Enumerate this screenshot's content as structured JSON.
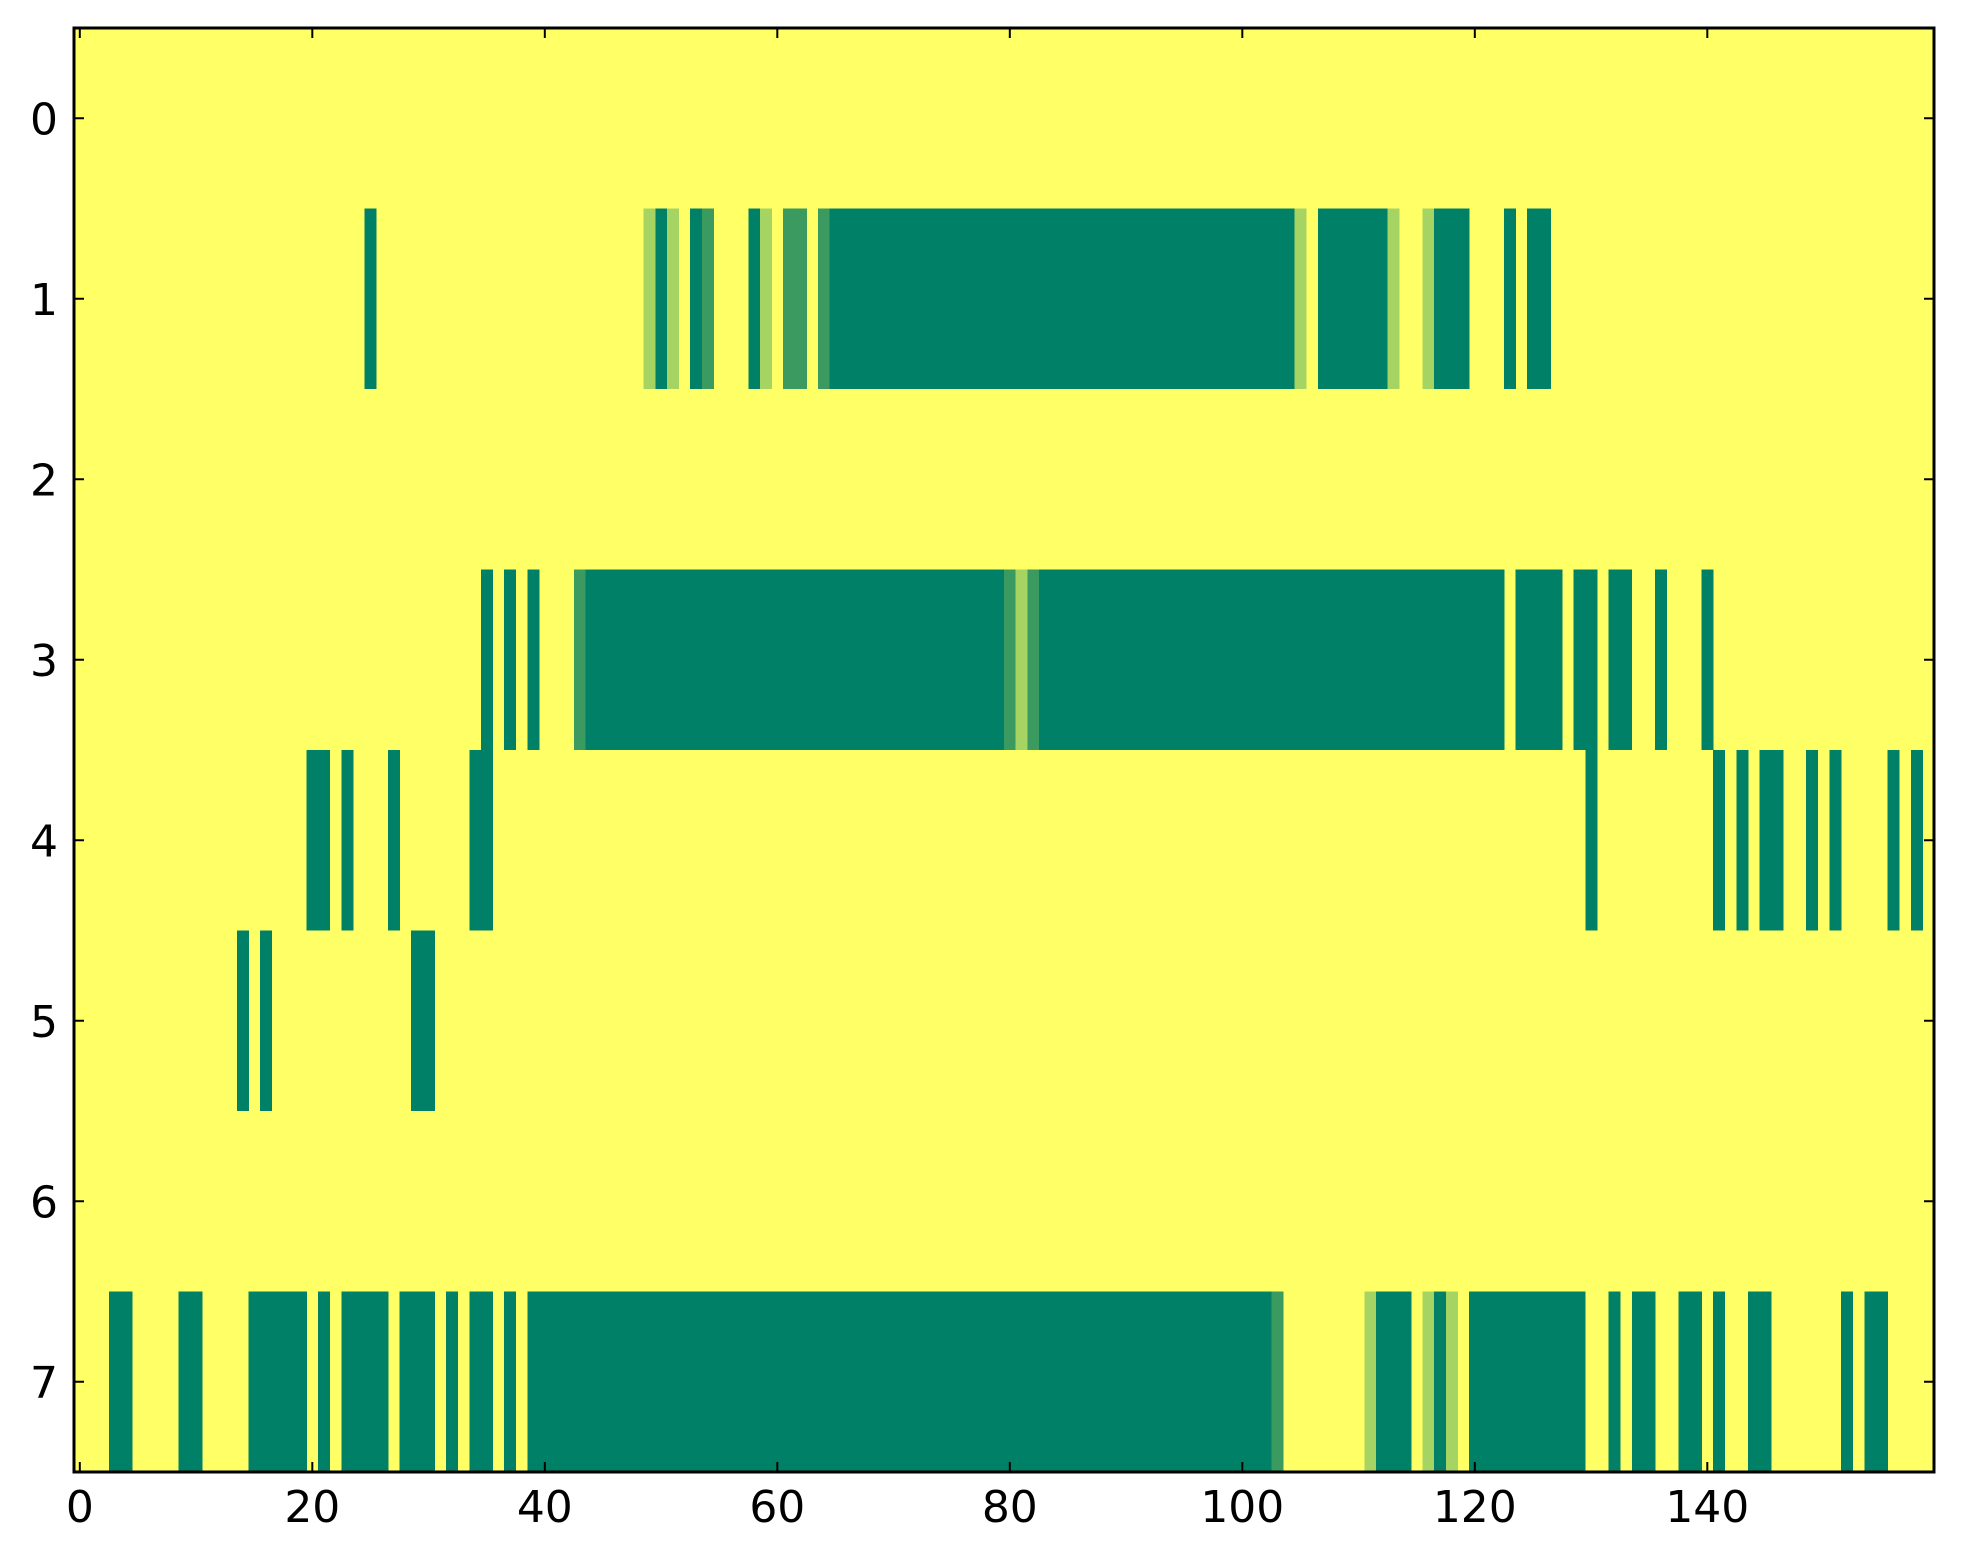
{
  "chart_data": {
    "type": "heatmap",
    "title": "",
    "xlabel": "",
    "ylabel": "",
    "x_ticks": [
      "0",
      "20",
      "40",
      "60",
      "80",
      "100",
      "120",
      "140"
    ],
    "y_ticks": [
      "0",
      "1",
      "2",
      "3",
      "4",
      "5",
      "6",
      "7"
    ],
    "xlim": [
      -0.5,
      159.5
    ],
    "ylim": [
      7.5,
      -0.5
    ],
    "columns": 160,
    "rows": 8,
    "grid": false,
    "legend": "none",
    "colormap": "summer",
    "colors": {
      "background": "#ffff66",
      "dark": "#008066",
      "mid_dark": "#3a9a5f",
      "mid_light": "#a6d462",
      "axis": "#000000"
    },
    "levels": {
      "background": 0.0,
      "mid_light": 0.35,
      "mid_dark": 0.8,
      "dark": 1.0
    },
    "default_value": 0.0,
    "cells": [
      {
        "row": 1,
        "start": 25,
        "end": 26,
        "level": "dark"
      },
      {
        "row": 1,
        "start": 49,
        "end": 50,
        "level": "mid_light"
      },
      {
        "row": 1,
        "start": 50,
        "end": 51,
        "level": "dark"
      },
      {
        "row": 1,
        "start": 51,
        "end": 52,
        "level": "mid_light"
      },
      {
        "row": 1,
        "start": 53,
        "end": 54,
        "level": "dark"
      },
      {
        "row": 1,
        "start": 54,
        "end": 55,
        "level": "mid_dark"
      },
      {
        "row": 1,
        "start": 58,
        "end": 59,
        "level": "dark"
      },
      {
        "row": 1,
        "start": 59,
        "end": 60,
        "level": "mid_light"
      },
      {
        "row": 1,
        "start": 61,
        "end": 63,
        "level": "mid_dark"
      },
      {
        "row": 1,
        "start": 64,
        "end": 65,
        "level": "mid_dark"
      },
      {
        "row": 1,
        "start": 65,
        "end": 105,
        "level": "dark"
      },
      {
        "row": 1,
        "start": 105,
        "end": 106,
        "level": "mid_light"
      },
      {
        "row": 1,
        "start": 107,
        "end": 113,
        "level": "dark"
      },
      {
        "row": 1,
        "start": 113,
        "end": 114,
        "level": "mid_light"
      },
      {
        "row": 1,
        "start": 116,
        "end": 117,
        "level": "mid_light"
      },
      {
        "row": 1,
        "start": 117,
        "end": 120,
        "level": "dark"
      },
      {
        "row": 1,
        "start": 123,
        "end": 124,
        "level": "dark"
      },
      {
        "row": 1,
        "start": 125,
        "end": 127,
        "level": "dark"
      },
      {
        "row": 3,
        "start": 35,
        "end": 36,
        "level": "dark"
      },
      {
        "row": 3,
        "start": 37,
        "end": 38,
        "level": "dark"
      },
      {
        "row": 3,
        "start": 39,
        "end": 40,
        "level": "dark"
      },
      {
        "row": 3,
        "start": 43,
        "end": 44,
        "level": "mid_dark"
      },
      {
        "row": 3,
        "start": 44,
        "end": 80,
        "level": "dark"
      },
      {
        "row": 3,
        "start": 80,
        "end": 81,
        "level": "mid_dark"
      },
      {
        "row": 3,
        "start": 81,
        "end": 82,
        "level": "mid_light"
      },
      {
        "row": 3,
        "start": 82,
        "end": 83,
        "level": "mid_dark"
      },
      {
        "row": 3,
        "start": 83,
        "end": 123,
        "level": "dark"
      },
      {
        "row": 3,
        "start": 124,
        "end": 128,
        "level": "dark"
      },
      {
        "row": 3,
        "start": 129,
        "end": 131,
        "level": "dark"
      },
      {
        "row": 3,
        "start": 132,
        "end": 134,
        "level": "dark"
      },
      {
        "row": 3,
        "start": 136,
        "end": 137,
        "level": "dark"
      },
      {
        "row": 3,
        "start": 140,
        "end": 141,
        "level": "dark"
      },
      {
        "row": 4,
        "start": 20,
        "end": 22,
        "level": "dark"
      },
      {
        "row": 4,
        "start": 23,
        "end": 24,
        "level": "dark"
      },
      {
        "row": 4,
        "start": 27,
        "end": 28,
        "level": "dark"
      },
      {
        "row": 4,
        "start": 34,
        "end": 36,
        "level": "dark"
      },
      {
        "row": 4,
        "start": 130,
        "end": 131,
        "level": "dark"
      },
      {
        "row": 4,
        "start": 141,
        "end": 142,
        "level": "dark"
      },
      {
        "row": 4,
        "start": 143,
        "end": 144,
        "level": "dark"
      },
      {
        "row": 4,
        "start": 145,
        "end": 147,
        "level": "dark"
      },
      {
        "row": 4,
        "start": 149,
        "end": 150,
        "level": "dark"
      },
      {
        "row": 4,
        "start": 151,
        "end": 152,
        "level": "dark"
      },
      {
        "row": 4,
        "start": 156,
        "end": 157,
        "level": "dark"
      },
      {
        "row": 4,
        "start": 158,
        "end": 159,
        "level": "dark"
      },
      {
        "row": 5,
        "start": 14,
        "end": 15,
        "level": "dark"
      },
      {
        "row": 5,
        "start": 16,
        "end": 17,
        "level": "dark"
      },
      {
        "row": 5,
        "start": 29,
        "end": 31,
        "level": "dark"
      },
      {
        "row": 7,
        "start": 3,
        "end": 5,
        "level": "dark"
      },
      {
        "row": 7,
        "start": 9,
        "end": 11,
        "level": "dark"
      },
      {
        "row": 7,
        "start": 15,
        "end": 20,
        "level": "dark"
      },
      {
        "row": 7,
        "start": 21,
        "end": 22,
        "level": "dark"
      },
      {
        "row": 7,
        "start": 23,
        "end": 27,
        "level": "dark"
      },
      {
        "row": 7,
        "start": 28,
        "end": 31,
        "level": "dark"
      },
      {
        "row": 7,
        "start": 32,
        "end": 33,
        "level": "dark"
      },
      {
        "row": 7,
        "start": 34,
        "end": 36,
        "level": "dark"
      },
      {
        "row": 7,
        "start": 37,
        "end": 38,
        "level": "dark"
      },
      {
        "row": 7,
        "start": 39,
        "end": 103,
        "level": "dark"
      },
      {
        "row": 7,
        "start": 103,
        "end": 104,
        "level": "mid_dark"
      },
      {
        "row": 7,
        "start": 111,
        "end": 112,
        "level": "mid_light"
      },
      {
        "row": 7,
        "start": 112,
        "end": 115,
        "level": "dark"
      },
      {
        "row": 7,
        "start": 116,
        "end": 117,
        "level": "mid_light"
      },
      {
        "row": 7,
        "start": 117,
        "end": 118,
        "level": "dark"
      },
      {
        "row": 7,
        "start": 118,
        "end": 119,
        "level": "mid_light"
      },
      {
        "row": 7,
        "start": 120,
        "end": 130,
        "level": "dark"
      },
      {
        "row": 7,
        "start": 132,
        "end": 133,
        "level": "dark"
      },
      {
        "row": 7,
        "start": 134,
        "end": 136,
        "level": "dark"
      },
      {
        "row": 7,
        "start": 138,
        "end": 140,
        "level": "dark"
      },
      {
        "row": 7,
        "start": 141,
        "end": 142,
        "level": "dark"
      },
      {
        "row": 7,
        "start": 144,
        "end": 146,
        "level": "dark"
      },
      {
        "row": 7,
        "start": 152,
        "end": 153,
        "level": "dark"
      },
      {
        "row": 7,
        "start": 154,
        "end": 156,
        "level": "dark"
      }
    ]
  }
}
